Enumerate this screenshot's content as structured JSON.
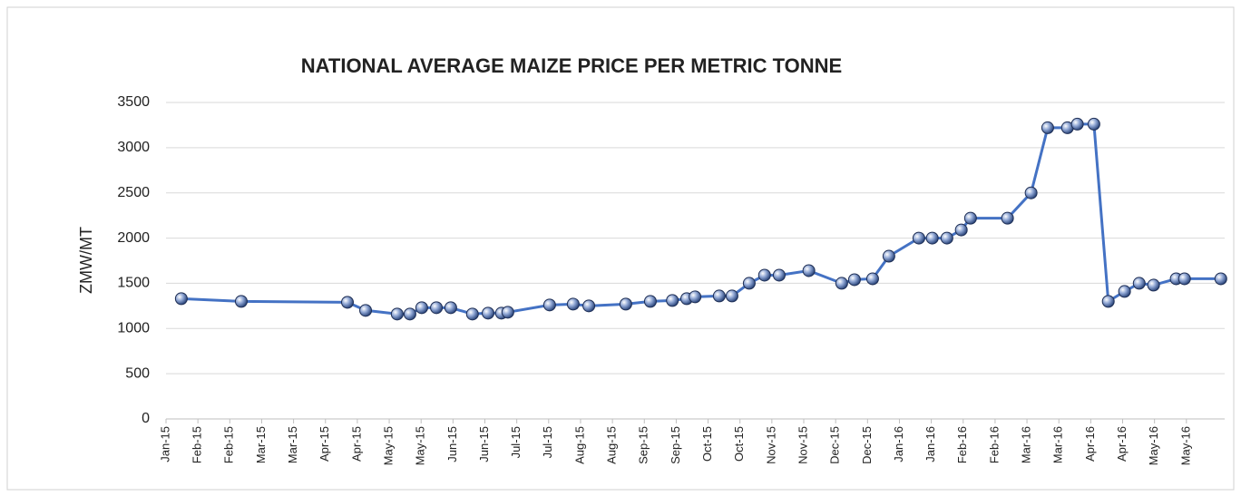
{
  "chart_data": {
    "type": "line",
    "title": "NATIONAL AVERAGE MAIZE PRICE PER METRIC TONNE",
    "y_label": "ZMW/MT",
    "xlim": [
      0,
      33.2
    ],
    "xticks": [
      {
        "value": 0,
        "label": "Jan-15"
      },
      {
        "value": 1,
        "label": "Feb-15"
      },
      {
        "value": 2,
        "label": "Feb-15"
      },
      {
        "value": 3,
        "label": "Mar-15"
      },
      {
        "value": 4,
        "label": "Mar-15"
      },
      {
        "value": 5,
        "label": "Apr-15"
      },
      {
        "value": 6,
        "label": "Apr-15"
      },
      {
        "value": 7,
        "label": "May-15"
      },
      {
        "value": 8,
        "label": "May-15"
      },
      {
        "value": 9,
        "label": "Jun-15"
      },
      {
        "value": 10,
        "label": "Jun-15"
      },
      {
        "value": 11,
        "label": "Jul-15"
      },
      {
        "value": 12,
        "label": "Jul-15"
      },
      {
        "value": 13,
        "label": "Aug-15"
      },
      {
        "value": 14,
        "label": "Aug-15"
      },
      {
        "value": 15,
        "label": "Sep-15"
      },
      {
        "value": 16,
        "label": "Sep-15"
      },
      {
        "value": 17,
        "label": "Oct-15"
      },
      {
        "value": 18,
        "label": "Oct-15"
      },
      {
        "value": 19,
        "label": "Nov-15"
      },
      {
        "value": 20,
        "label": "Nov-15"
      },
      {
        "value": 21,
        "label": "Dec-15"
      },
      {
        "value": 22,
        "label": "Dec-15"
      },
      {
        "value": 23,
        "label": "Jan-16"
      },
      {
        "value": 24,
        "label": "Jan-16"
      },
      {
        "value": 25,
        "label": "Feb-16"
      },
      {
        "value": 26,
        "label": "Feb-16"
      },
      {
        "value": 27,
        "label": "Mar-16"
      },
      {
        "value": 28,
        "label": "Mar-16"
      },
      {
        "value": 29,
        "label": "Apr-16"
      },
      {
        "value": 30,
        "label": "Apr-16"
      },
      {
        "value": 31,
        "label": "May-16"
      },
      {
        "value": 32,
        "label": "May-16"
      }
    ],
    "ylim": [
      0,
      3500
    ],
    "yticks": [
      0,
      500,
      1000,
      1500,
      2000,
      2500,
      3000,
      3500
    ],
    "grid": true,
    "color": "#4472c4",
    "x": [
      0.48,
      2.36,
      5.69,
      6.26,
      7.25,
      7.65,
      8.02,
      8.48,
      8.93,
      9.61,
      10.1,
      10.52,
      10.72,
      12.03,
      12.77,
      13.26,
      14.42,
      15.19,
      15.88,
      16.33,
      16.59,
      17.35,
      17.75,
      18.29,
      18.77,
      19.23,
      20.16,
      21.19,
      21.59,
      22.16,
      22.67,
      23.61,
      24.03,
      24.49,
      24.94,
      25.23,
      26.39,
      27.13,
      27.65,
      28.27,
      28.58,
      29.1,
      29.55,
      30.06,
      30.52,
      30.97,
      31.68,
      31.94,
      33.08
    ],
    "values": [
      1330,
      1300,
      1290,
      1200,
      1160,
      1160,
      1230,
      1230,
      1230,
      1160,
      1170,
      1170,
      1180,
      1260,
      1270,
      1250,
      1270,
      1300,
      1310,
      1330,
      1350,
      1360,
      1360,
      1500,
      1590,
      1590,
      1640,
      1500,
      1540,
      1550,
      1800,
      2000,
      2000,
      2000,
      2090,
      2220,
      2220,
      2500,
      3220,
      3220,
      3260,
      3260,
      1300,
      1410,
      1500,
      1480,
      1550,
      1550,
      1550
    ]
  }
}
